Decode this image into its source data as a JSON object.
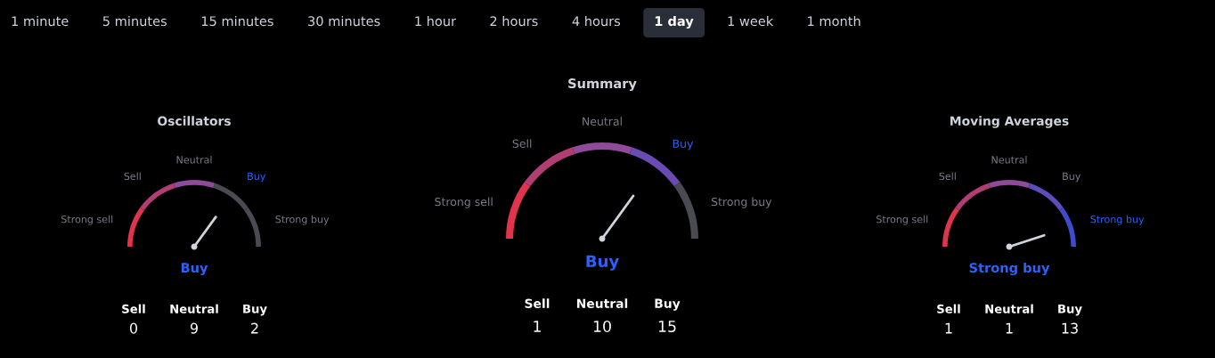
{
  "chart_data": [
    {
      "type": "other",
      "categories": [
        "1 minute",
        "5 minutes",
        "15 minutes",
        "30 minutes",
        "1 hour",
        "2 hours",
        "4 hours",
        "1 day",
        "1 week",
        "1 month"
      ],
      "colors": [
        "#000000",
        "#000000",
        "#000000",
        "#000000",
        "#000000",
        "#000000",
        "#000000",
        "#2a2e39",
        "#000000",
        "#000000"
      ]
    },
    {
      "type": "donut",
      "title": "Oscillators",
      "categories": [
        "Strong sell",
        "Sell",
        "Neutral",
        "Buy",
        "Strong buy"
      ],
      "values": [
        20,
        20,
        20,
        20,
        20
      ],
      "colors": [
        "#e0344c",
        "#b03e72",
        "#8f4a9a",
        "#4a4a52",
        "#4a4a52"
      ],
      "needle": "Buy",
      "annotations": [
        "Buy"
      ]
    },
    {
      "type": "other",
      "categories": [
        "Sell",
        "Neutral",
        "Buy"
      ],
      "values": [
        0,
        9,
        2
      ],
      "data_labels": true
    },
    {
      "type": "donut",
      "title": "Summary",
      "categories": [
        "Strong sell",
        "Sell",
        "Neutral",
        "Buy",
        "Strong buy"
      ],
      "values": [
        20,
        20,
        20,
        20,
        20
      ],
      "colors": [
        "#e0344c",
        "#b03e72",
        "#8f4a9a",
        "#6a4bb4",
        "#4a4a52"
      ],
      "needle": "Buy",
      "annotations": [
        "Buy"
      ]
    },
    {
      "type": "other",
      "categories": [
        "Sell",
        "Neutral",
        "Buy"
      ],
      "values": [
        1,
        10,
        15
      ],
      "data_labels": true
    },
    {
      "type": "donut",
      "title": "Moving Averages",
      "categories": [
        "Strong sell",
        "Sell",
        "Neutral",
        "Buy",
        "Strong buy"
      ],
      "values": [
        20,
        20,
        20,
        20,
        20
      ],
      "colors": [
        "#e0344c",
        "#b03e72",
        "#8f4a9a",
        "#5e4cbc",
        "#3f4bc8"
      ],
      "needle": "Strong buy",
      "annotations": [
        "Strong buy"
      ]
    },
    {
      "type": "other",
      "categories": [
        "Sell",
        "Neutral",
        "Buy"
      ],
      "values": [
        1,
        1,
        13
      ],
      "data_labels": true
    }
  ]
}
